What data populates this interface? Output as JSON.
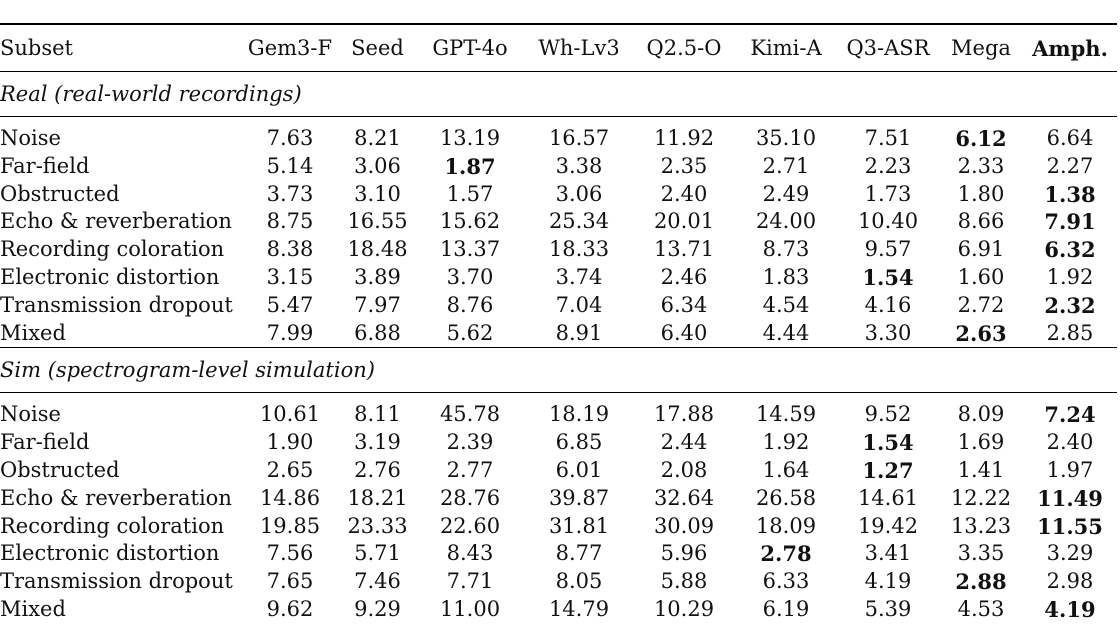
{
  "columns": [
    "Subset",
    "Gem3-F",
    "Seed",
    "GPT-4o",
    "Wh-Lv3",
    "Q2.5-O",
    "Kimi-A",
    "Q3-ASR",
    "Mega",
    "Amph."
  ],
  "sections": [
    {
      "title": "Real (real-world recordings)",
      "rows": [
        {
          "label": "Noise",
          "values": [
            "7.63",
            "8.21",
            "13.19",
            "16.57",
            "11.92",
            "35.10",
            "7.51",
            "6.12",
            "6.64"
          ],
          "best": 7
        },
        {
          "label": "Far-field",
          "values": [
            "5.14",
            "3.06",
            "1.87",
            "3.38",
            "2.35",
            "2.71",
            "2.23",
            "2.33",
            "2.27"
          ],
          "best": 2
        },
        {
          "label": "Obstructed",
          "values": [
            "3.73",
            "3.10",
            "1.57",
            "3.06",
            "2.40",
            "2.49",
            "1.73",
            "1.80",
            "1.38"
          ],
          "best": 8
        },
        {
          "label": "Echo & reverberation",
          "values": [
            "8.75",
            "16.55",
            "15.62",
            "25.34",
            "20.01",
            "24.00",
            "10.40",
            "8.66",
            "7.91"
          ],
          "best": 8
        },
        {
          "label": "Recording coloration",
          "values": [
            "8.38",
            "18.48",
            "13.37",
            "18.33",
            "13.71",
            "8.73",
            "9.57",
            "6.91",
            "6.32"
          ],
          "best": 8
        },
        {
          "label": "Electronic distortion",
          "values": [
            "3.15",
            "3.89",
            "3.70",
            "3.74",
            "2.46",
            "1.83",
            "1.54",
            "1.60",
            "1.92"
          ],
          "best": 6
        },
        {
          "label": "Transmission dropout",
          "values": [
            "5.47",
            "7.97",
            "8.76",
            "7.04",
            "6.34",
            "4.54",
            "4.16",
            "2.72",
            "2.32"
          ],
          "best": 8
        },
        {
          "label": "Mixed",
          "values": [
            "7.99",
            "6.88",
            "5.62",
            "8.91",
            "6.40",
            "4.44",
            "3.30",
            "2.63",
            "2.85"
          ],
          "best": 7
        }
      ]
    },
    {
      "title": "Sim (spectrogram-level simulation)",
      "rows": [
        {
          "label": "Noise",
          "values": [
            "10.61",
            "8.11",
            "45.78",
            "18.19",
            "17.88",
            "14.59",
            "9.52",
            "8.09",
            "7.24"
          ],
          "best": 8
        },
        {
          "label": "Far-field",
          "values": [
            "1.90",
            "3.19",
            "2.39",
            "6.85",
            "2.44",
            "1.92",
            "1.54",
            "1.69",
            "2.40"
          ],
          "best": 6
        },
        {
          "label": "Obstructed",
          "values": [
            "2.65",
            "2.76",
            "2.77",
            "6.01",
            "2.08",
            "1.64",
            "1.27",
            "1.41",
            "1.97"
          ],
          "best": 6
        },
        {
          "label": "Echo & reverberation",
          "values": [
            "14.86",
            "18.21",
            "28.76",
            "39.87",
            "32.64",
            "26.58",
            "14.61",
            "12.22",
            "11.49"
          ],
          "best": 8
        },
        {
          "label": "Recording coloration",
          "values": [
            "19.85",
            "23.33",
            "22.60",
            "31.81",
            "30.09",
            "18.09",
            "19.42",
            "13.23",
            "11.55"
          ],
          "best": 8
        },
        {
          "label": "Electronic distortion",
          "values": [
            "7.56",
            "5.71",
            "8.43",
            "8.77",
            "5.96",
            "2.78",
            "3.41",
            "3.35",
            "3.29"
          ],
          "best": 5
        },
        {
          "label": "Transmission dropout",
          "values": [
            "7.65",
            "7.46",
            "7.71",
            "8.05",
            "5.88",
            "6.33",
            "4.19",
            "2.88",
            "2.98"
          ],
          "best": 7
        },
        {
          "label": "Mixed",
          "values": [
            "9.62",
            "9.29",
            "11.00",
            "14.79",
            "10.29",
            "6.19",
            "5.39",
            "4.53",
            "4.19"
          ],
          "best": 8
        }
      ]
    }
  ]
}
